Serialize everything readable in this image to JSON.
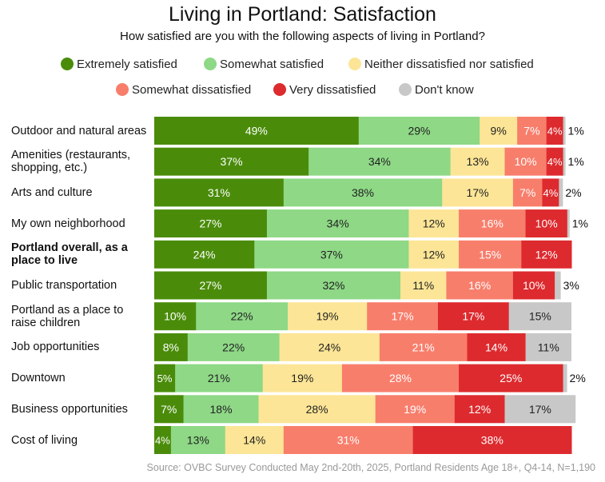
{
  "chart_data": {
    "type": "stacked-bar-horizontal",
    "title": "Living in Portland: Satisfaction",
    "subtitle": "How satisfied are you with the following aspects of living in Portland?",
    "legend": [
      {
        "name": "Extremely satisfied",
        "color": "#4a8c0a"
      },
      {
        "name": "Somewhat satisfied",
        "color": "#8ed886"
      },
      {
        "name": "Neither dissatisfied nor satisfied",
        "color": "#fce596"
      },
      {
        "name": "Somewhat dissatisfied",
        "color": "#f87e6c"
      },
      {
        "name": "Very dissatisfied",
        "color": "#dd2a2e"
      },
      {
        "name": "Don't know",
        "color": "#c8c8c8"
      }
    ],
    "rows": [
      {
        "label": "Outdoor and natural areas",
        "bold": false,
        "values": [
          49,
          29,
          9,
          7,
          4,
          1
        ]
      },
      {
        "label": "Amenities (restaurants, shopping, etc.)",
        "bold": false,
        "values": [
          37,
          34,
          13,
          10,
          4,
          1
        ]
      },
      {
        "label": "Arts  and  culture",
        "bold": false,
        "values": [
          31,
          38,
          17,
          7,
          4,
          2
        ]
      },
      {
        "label": "My own neighborhood",
        "bold": false,
        "values": [
          27,
          34,
          12,
          16,
          10,
          1
        ]
      },
      {
        "label": "Portland overall, as a place to live",
        "bold": true,
        "values": [
          24,
          37,
          12,
          15,
          12,
          0
        ]
      },
      {
        "label": "Public transportation",
        "bold": false,
        "values": [
          27,
          32,
          11,
          16,
          10,
          3
        ]
      },
      {
        "label": "Portland as a place to raise children",
        "bold": false,
        "values": [
          10,
          22,
          19,
          17,
          17,
          15
        ]
      },
      {
        "label": "Job opportunities",
        "bold": false,
        "values": [
          8,
          22,
          24,
          21,
          14,
          11
        ]
      },
      {
        "label": "Downtown",
        "bold": false,
        "values": [
          5,
          21,
          19,
          28,
          25,
          2
        ]
      },
      {
        "label": "Business opportunities",
        "bold": false,
        "values": [
          7,
          18,
          28,
          19,
          12,
          17
        ]
      },
      {
        "label": "Cost of living",
        "bold": false,
        "values": [
          4,
          13,
          14,
          31,
          38,
          0
        ]
      }
    ],
    "source": "Source: OVBC Survey Conducted May 2nd-20th, 2025, Portland Residents Age 18+, Q4-14, N=1,190"
  }
}
